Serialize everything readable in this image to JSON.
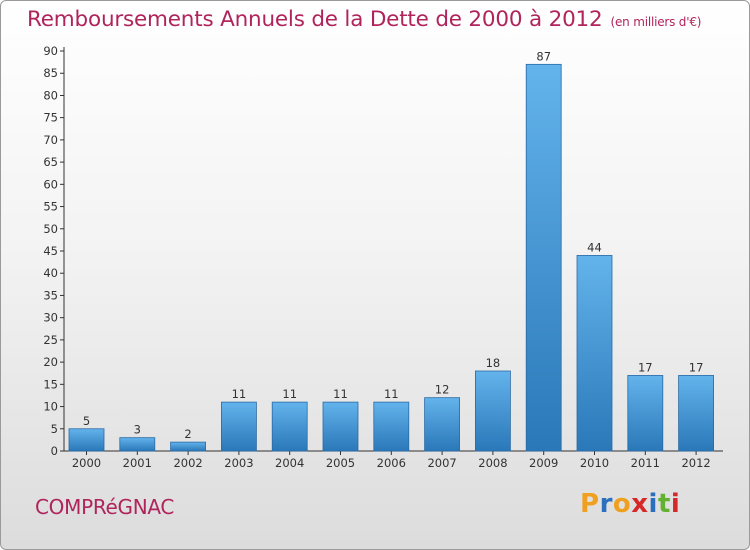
{
  "header": {
    "title": "Remboursements Annuels de la Dette de 2000 à 2012",
    "unit": "(en milliers d'€)"
  },
  "footer": {
    "commune": "COMPRéGNAC",
    "logo_text": "Proxiti"
  },
  "colors": {
    "title": "#b0245c",
    "bar_light": "#63b3ec",
    "bar_dark": "#2a78b8",
    "logo_letters": [
      "#f0a020",
      "#2b6fbe",
      "#f0a020",
      "#d62828",
      "#2b6fbe",
      "#62b22f",
      "#d62828"
    ]
  },
  "chart_data": {
    "type": "bar",
    "categories": [
      "2000",
      "2001",
      "2002",
      "2003",
      "2004",
      "2005",
      "2006",
      "2007",
      "2008",
      "2009",
      "2010",
      "2011",
      "2012"
    ],
    "values": [
      5,
      3,
      2,
      11,
      11,
      11,
      11,
      12,
      18,
      87,
      44,
      17,
      17
    ],
    "title": "Remboursements Annuels de la Dette de 2000 à 2012",
    "ylim": [
      0,
      90
    ],
    "yticks": [
      0,
      5,
      10,
      15,
      20,
      25,
      30,
      35,
      40,
      45,
      50,
      55,
      60,
      65,
      70,
      75,
      80,
      85,
      90
    ],
    "grid": false,
    "data_labels": true
  }
}
